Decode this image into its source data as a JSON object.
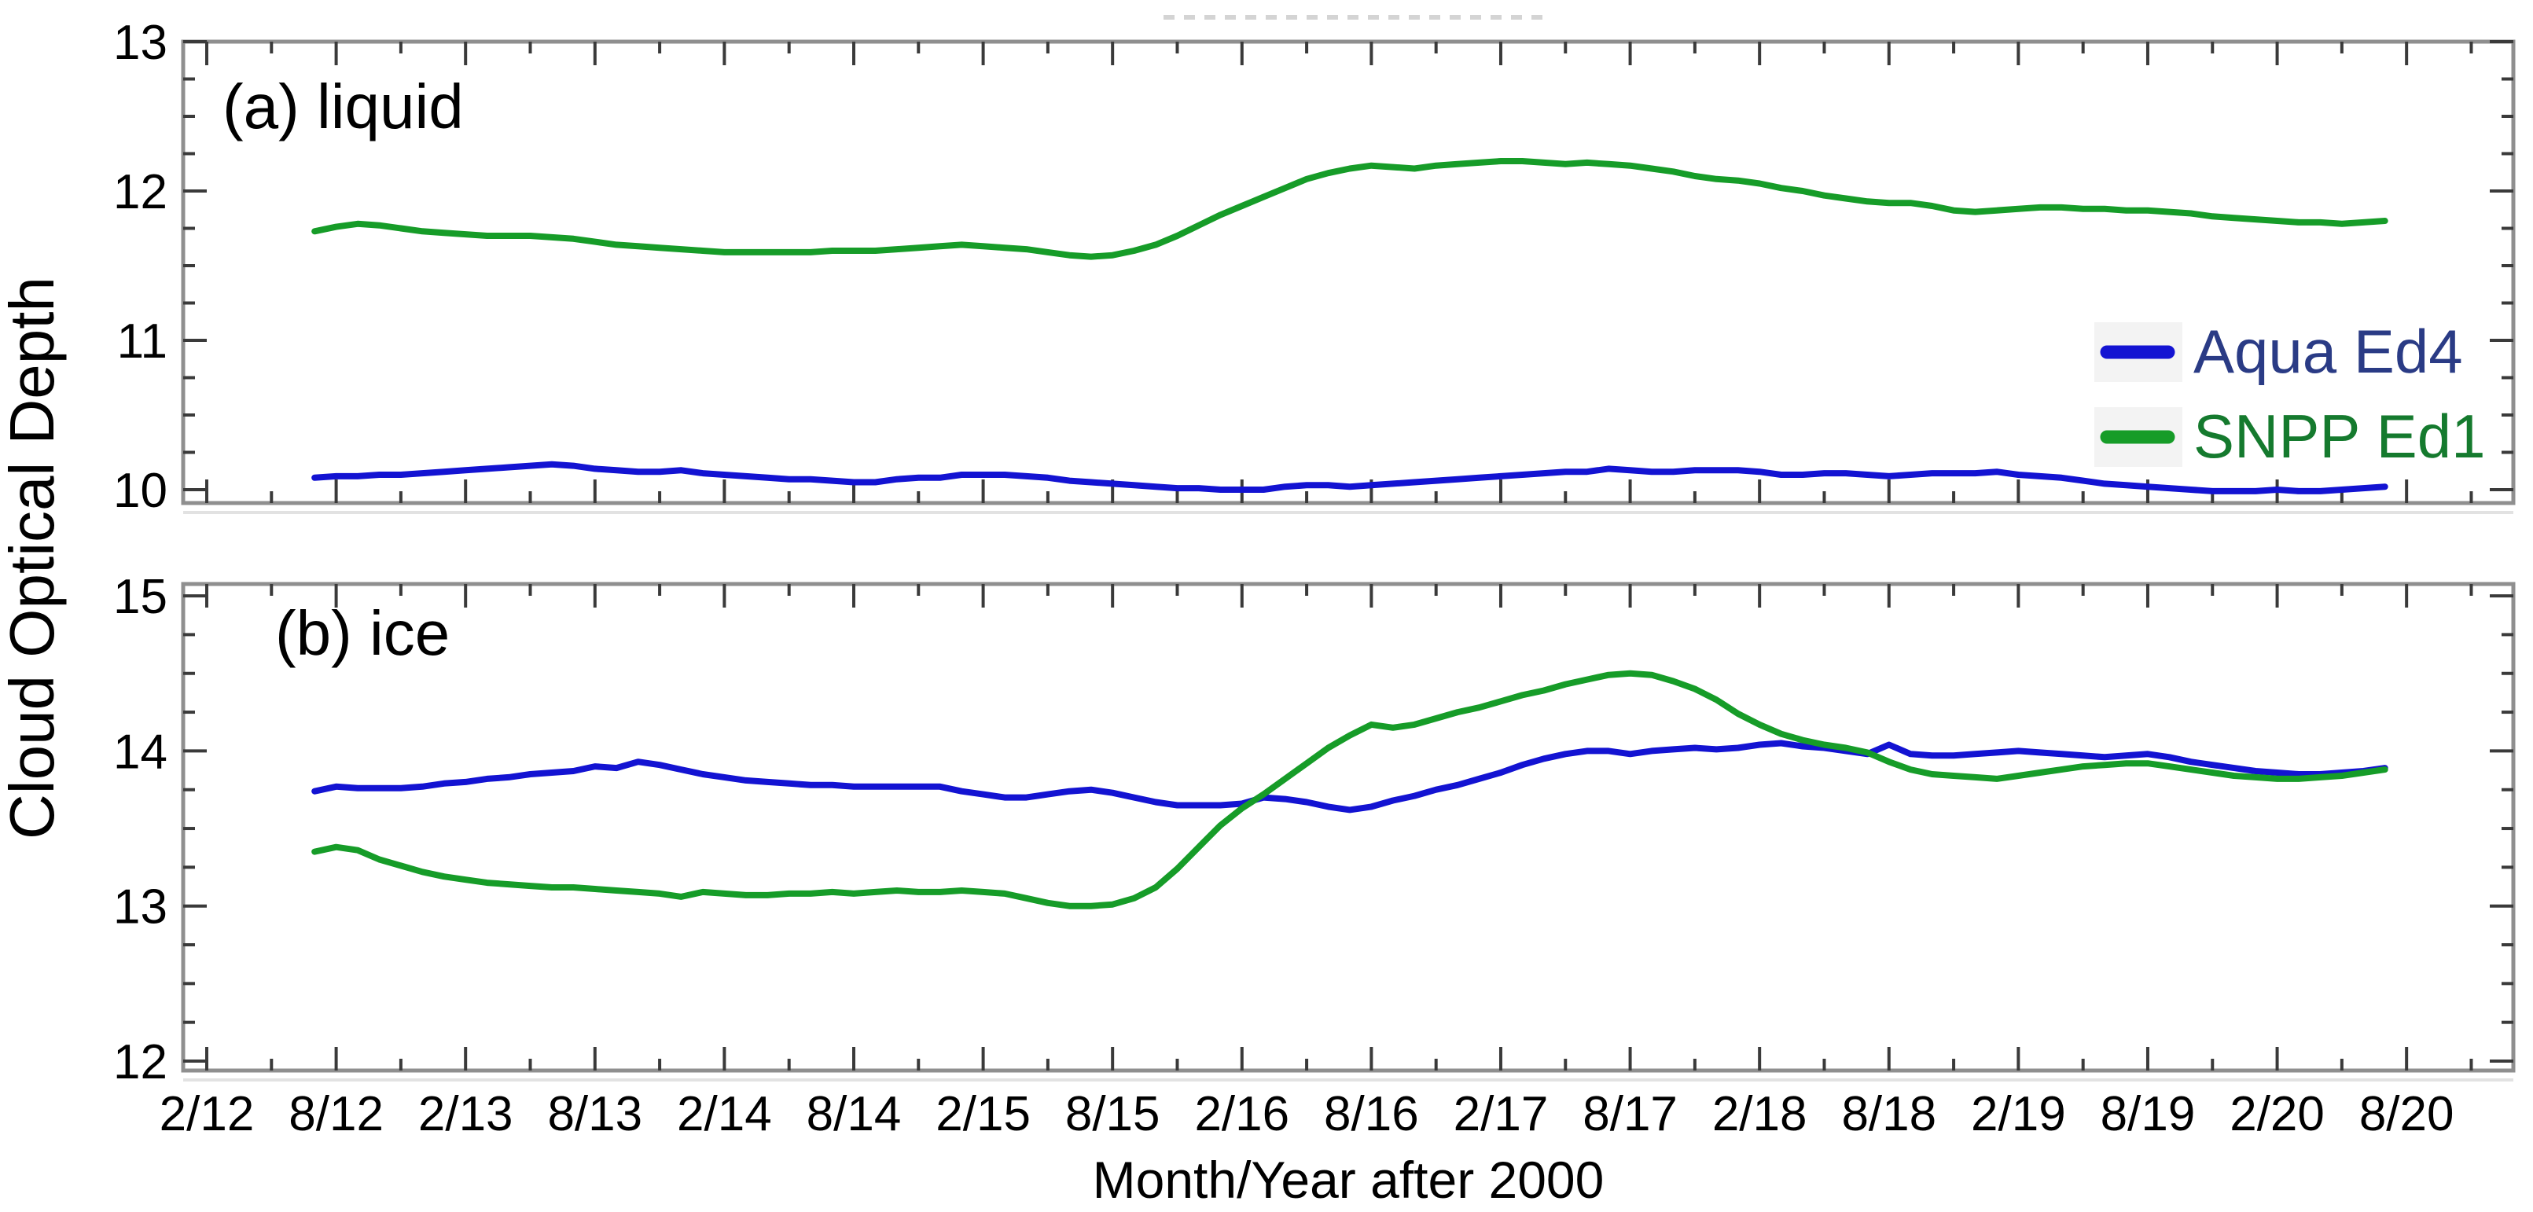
{
  "figure": {
    "y_axis_title": "Cloud Optical Depth",
    "x_axis_title": "Month/Year after 2000",
    "background_color": "#ffffff",
    "border_color": "#8f8f8f",
    "tick_color": "#3a3a3a",
    "text_color": "#000000",
    "artifact_color": "#d4d4d4"
  },
  "legend": {
    "position": "right-center of top panel",
    "items": [
      {
        "label": "Aqua Ed4",
        "line_color": "#1313d2",
        "text_color": "#2a3b85"
      },
      {
        "label": "SNPP Ed1",
        "line_color": "#169c28",
        "text_color": "#157a2e"
      }
    ]
  },
  "chart_data": [
    {
      "type": "line",
      "panel_label": "(a) liquid",
      "ylabel_shared": "Cloud Optical Depth",
      "ylim_ticks": [
        10,
        13
      ],
      "yticks": [
        10,
        11,
        12,
        13
      ],
      "minor_ytick_step": 0.25,
      "x_tick_labels": [
        "2/12",
        "8/12",
        "2/13",
        "8/13",
        "2/14",
        "8/14",
        "2/15",
        "8/15",
        "2/16",
        "8/16",
        "2/17",
        "8/17",
        "2/18",
        "8/18",
        "2/19",
        "8/19",
        "2/20",
        "8/20"
      ],
      "x_minor_tick_every_months": 3,
      "grid": false,
      "x_months": [
        "7/12",
        "8/12",
        "9/12",
        "10/12",
        "11/12",
        "12/12",
        "1/13",
        "2/13",
        "3/13",
        "4/13",
        "5/13",
        "6/13",
        "7/13",
        "8/13",
        "9/13",
        "10/13",
        "11/13",
        "12/13",
        "1/14",
        "2/14",
        "3/14",
        "4/14",
        "5/14",
        "6/14",
        "7/14",
        "8/14",
        "9/14",
        "10/14",
        "11/14",
        "12/14",
        "1/15",
        "2/15",
        "3/15",
        "4/15",
        "5/15",
        "6/15",
        "7/15",
        "8/15",
        "9/15",
        "10/15",
        "11/15",
        "12/15",
        "1/16",
        "2/16",
        "3/16",
        "4/16",
        "5/16",
        "6/16",
        "7/16",
        "8/16",
        "9/16",
        "10/16",
        "11/16",
        "12/16",
        "1/17",
        "2/17",
        "3/17",
        "4/17",
        "5/17",
        "6/17",
        "7/17",
        "8/17",
        "9/17",
        "10/17",
        "11/17",
        "12/17",
        "1/18",
        "2/18",
        "3/18",
        "4/18",
        "5/18",
        "6/18",
        "7/18",
        "8/18",
        "9/18",
        "10/18",
        "11/18",
        "12/18",
        "1/19",
        "2/19",
        "3/19",
        "4/19",
        "5/19",
        "6/19",
        "7/19",
        "8/19",
        "9/19",
        "10/19",
        "11/19",
        "12/19",
        "1/20",
        "2/20",
        "3/20",
        "4/20",
        "5/20",
        "6/20",
        "7/20"
      ],
      "series": [
        {
          "name": "Aqua Ed4",
          "color": "#1313d2",
          "values": [
            10.08,
            10.09,
            10.09,
            10.1,
            10.1,
            10.11,
            10.12,
            10.13,
            10.14,
            10.15,
            10.16,
            10.17,
            10.16,
            10.14,
            10.13,
            10.12,
            10.12,
            10.13,
            10.11,
            10.1,
            10.09,
            10.08,
            10.07,
            10.07,
            10.06,
            10.05,
            10.05,
            10.07,
            10.08,
            10.08,
            10.1,
            10.1,
            10.1,
            10.09,
            10.08,
            10.06,
            10.05,
            10.04,
            10.03,
            10.02,
            10.01,
            10.01,
            10.0,
            10.0,
            10.0,
            10.02,
            10.03,
            10.03,
            10.02,
            10.03,
            10.04,
            10.05,
            10.06,
            10.07,
            10.08,
            10.09,
            10.1,
            10.11,
            10.12,
            10.12,
            10.14,
            10.13,
            10.12,
            10.12,
            10.13,
            10.13,
            10.13,
            10.12,
            10.1,
            10.1,
            10.11,
            10.11,
            10.1,
            10.09,
            10.1,
            10.11,
            10.11,
            10.11,
            10.12,
            10.1,
            10.09,
            10.08,
            10.06,
            10.04,
            10.03,
            10.02,
            10.01,
            10.0,
            9.99,
            9.99,
            9.99,
            10.0,
            9.99,
            9.99,
            10.0,
            10.01,
            10.02
          ]
        },
        {
          "name": "SNPP Ed1",
          "color": "#169c28",
          "values": [
            11.73,
            11.76,
            11.78,
            11.77,
            11.75,
            11.73,
            11.72,
            11.71,
            11.7,
            11.7,
            11.7,
            11.69,
            11.68,
            11.66,
            11.64,
            11.63,
            11.62,
            11.61,
            11.6,
            11.59,
            11.59,
            11.59,
            11.59,
            11.59,
            11.6,
            11.6,
            11.6,
            11.61,
            11.62,
            11.63,
            11.64,
            11.63,
            11.62,
            11.61,
            11.59,
            11.57,
            11.56,
            11.57,
            11.6,
            11.64,
            11.7,
            11.77,
            11.84,
            11.9,
            11.96,
            12.02,
            12.08,
            12.12,
            12.15,
            12.17,
            12.16,
            12.15,
            12.17,
            12.18,
            12.19,
            12.2,
            12.2,
            12.19,
            12.18,
            12.19,
            12.18,
            12.17,
            12.15,
            12.13,
            12.1,
            12.08,
            12.07,
            12.05,
            12.02,
            12.0,
            11.97,
            11.95,
            11.93,
            11.92,
            11.92,
            11.9,
            11.87,
            11.86,
            11.87,
            11.88,
            11.89,
            11.89,
            11.88,
            11.88,
            11.87,
            11.87,
            11.86,
            11.85,
            11.83,
            11.82,
            11.81,
            11.8,
            11.79,
            11.79,
            11.78,
            11.79,
            11.8
          ]
        }
      ]
    },
    {
      "type": "line",
      "panel_label": "(b) ice",
      "ylabel_shared": "Cloud Optical Depth",
      "ylim_ticks": [
        12,
        15
      ],
      "yticks": [
        12,
        13,
        14,
        15
      ],
      "minor_ytick_step": 0.25,
      "x_tick_labels": [
        "2/12",
        "8/12",
        "2/13",
        "8/13",
        "2/14",
        "8/14",
        "2/15",
        "8/15",
        "2/16",
        "8/16",
        "2/17",
        "8/17",
        "2/18",
        "8/18",
        "2/19",
        "8/19",
        "2/20",
        "8/20"
      ],
      "x_minor_tick_every_months": 3,
      "grid": false,
      "x_months": [
        "7/12",
        "8/12",
        "9/12",
        "10/12",
        "11/12",
        "12/12",
        "1/13",
        "2/13",
        "3/13",
        "4/13",
        "5/13",
        "6/13",
        "7/13",
        "8/13",
        "9/13",
        "10/13",
        "11/13",
        "12/13",
        "1/14",
        "2/14",
        "3/14",
        "4/14",
        "5/14",
        "6/14",
        "7/14",
        "8/14",
        "9/14",
        "10/14",
        "11/14",
        "12/14",
        "1/15",
        "2/15",
        "3/15",
        "4/15",
        "5/15",
        "6/15",
        "7/15",
        "8/15",
        "9/15",
        "10/15",
        "11/15",
        "12/15",
        "1/16",
        "2/16",
        "3/16",
        "4/16",
        "5/16",
        "6/16",
        "7/16",
        "8/16",
        "9/16",
        "10/16",
        "11/16",
        "12/16",
        "1/17",
        "2/17",
        "3/17",
        "4/17",
        "5/17",
        "6/17",
        "7/17",
        "8/17",
        "9/17",
        "10/17",
        "11/17",
        "12/17",
        "1/18",
        "2/18",
        "3/18",
        "4/18",
        "5/18",
        "6/18",
        "7/18",
        "8/18",
        "9/18",
        "10/18",
        "11/18",
        "12/18",
        "1/19",
        "2/19",
        "3/19",
        "4/19",
        "5/19",
        "6/19",
        "7/19",
        "8/19",
        "9/19",
        "10/19",
        "11/19",
        "12/19",
        "1/20",
        "2/20",
        "3/20",
        "4/20",
        "5/20",
        "6/20",
        "7/20"
      ],
      "series": [
        {
          "name": "Aqua Ed4",
          "color": "#1313d2",
          "values": [
            13.74,
            13.77,
            13.76,
            13.76,
            13.76,
            13.77,
            13.79,
            13.8,
            13.82,
            13.83,
            13.85,
            13.86,
            13.87,
            13.9,
            13.89,
            13.93,
            13.91,
            13.88,
            13.85,
            13.83,
            13.81,
            13.8,
            13.79,
            13.78,
            13.78,
            13.77,
            13.77,
            13.77,
            13.77,
            13.77,
            13.74,
            13.72,
            13.7,
            13.7,
            13.72,
            13.74,
            13.75,
            13.73,
            13.7,
            13.67,
            13.65,
            13.65,
            13.65,
            13.66,
            13.7,
            13.69,
            13.67,
            13.64,
            13.62,
            13.64,
            13.68,
            13.71,
            13.75,
            13.78,
            13.82,
            13.86,
            13.91,
            13.95,
            13.98,
            14.0,
            14.0,
            13.98,
            14.0,
            14.01,
            14.02,
            14.01,
            14.02,
            14.04,
            14.05,
            14.03,
            14.02,
            14.0,
            13.98,
            14.04,
            13.98,
            13.97,
            13.97,
            13.98,
            13.99,
            14.0,
            13.99,
            13.98,
            13.97,
            13.96,
            13.97,
            13.98,
            13.96,
            13.93,
            13.91,
            13.89,
            13.87,
            13.86,
            13.85,
            13.85,
            13.86,
            13.87,
            13.89
          ]
        },
        {
          "name": "SNPP Ed1",
          "color": "#169c28",
          "values": [
            13.35,
            13.38,
            13.36,
            13.3,
            13.26,
            13.22,
            13.19,
            13.17,
            13.15,
            13.14,
            13.13,
            13.12,
            13.12,
            13.11,
            13.1,
            13.09,
            13.08,
            13.06,
            13.09,
            13.08,
            13.07,
            13.07,
            13.08,
            13.08,
            13.09,
            13.08,
            13.09,
            13.1,
            13.09,
            13.09,
            13.1,
            13.09,
            13.08,
            13.05,
            13.02,
            13.0,
            13.0,
            13.01,
            13.05,
            13.12,
            13.24,
            13.38,
            13.52,
            13.63,
            13.72,
            13.82,
            13.92,
            14.02,
            14.1,
            14.17,
            14.15,
            14.17,
            14.21,
            14.25,
            14.28,
            14.32,
            14.36,
            14.39,
            14.43,
            14.46,
            14.49,
            14.5,
            14.49,
            14.45,
            14.4,
            14.33,
            14.24,
            14.17,
            14.11,
            14.07,
            14.04,
            14.02,
            13.99,
            13.93,
            13.88,
            13.85,
            13.84,
            13.83,
            13.82,
            13.84,
            13.86,
            13.88,
            13.9,
            13.91,
            13.92,
            13.92,
            13.9,
            13.88,
            13.86,
            13.84,
            13.83,
            13.82,
            13.82,
            13.83,
            13.84,
            13.86,
            13.88
          ]
        }
      ]
    }
  ]
}
